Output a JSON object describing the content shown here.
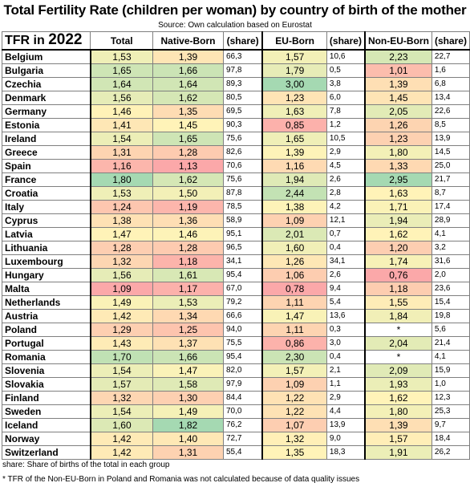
{
  "title": "Total Fertility Rate (children per woman) by country of birth of the mother",
  "source": "Source: Own calculation based on Eurostat",
  "header": {
    "tfr_label": "TFR in ",
    "year": "2022",
    "total": "Total",
    "native_born": "Native-Born",
    "share": "(share)",
    "eu_born": "EU-Born",
    "non_eu_born": "Non-EU-Born"
  },
  "rows": [
    {
      "country": "Belgium",
      "total": "1,53",
      "native": "1,39",
      "native_share": "66,3",
      "eu": "1,57",
      "eu_share": "10,6",
      "noneu": "2,23",
      "noneu_share": "22,7"
    },
    {
      "country": "Bulgaria",
      "total": "1,65",
      "native": "1,66",
      "native_share": "97,8",
      "eu": "1,79",
      "eu_share": "0,5",
      "noneu": "1,01",
      "noneu_share": "1,6"
    },
    {
      "country": "Czechia",
      "total": "1,64",
      "native": "1,64",
      "native_share": "89,3",
      "eu": "3,00",
      "eu_share": "3,8",
      "noneu": "1,39",
      "noneu_share": "6,8"
    },
    {
      "country": "Denmark",
      "total": "1,56",
      "native": "1,62",
      "native_share": "80,5",
      "eu": "1,23",
      "eu_share": "6,0",
      "noneu": "1,45",
      "noneu_share": "13,4"
    },
    {
      "country": "Germany",
      "total": "1,46",
      "native": "1,35",
      "native_share": "69,5",
      "eu": "1,63",
      "eu_share": "7,8",
      "noneu": "2,05",
      "noneu_share": "22,6"
    },
    {
      "country": "Estonia",
      "total": "1,41",
      "native": "1,45",
      "native_share": "90,3",
      "eu": "0,85",
      "eu_share": "1,2",
      "noneu": "1,26",
      "noneu_share": "8,5"
    },
    {
      "country": "Ireland",
      "total": "1,54",
      "native": "1,65",
      "native_share": "75,6",
      "eu": "1,65",
      "eu_share": "10,5",
      "noneu": "1,23",
      "noneu_share": "13,9"
    },
    {
      "country": "Greece",
      "total": "1,31",
      "native": "1,28",
      "native_share": "82,6",
      "eu": "1,39",
      "eu_share": "2,9",
      "noneu": "1,80",
      "noneu_share": "14,5"
    },
    {
      "country": "Spain",
      "total": "1,16",
      "native": "1,13",
      "native_share": "70,6",
      "eu": "1,16",
      "eu_share": "4,5",
      "noneu": "1,33",
      "noneu_share": "25,0"
    },
    {
      "country": "France",
      "total": "1,80",
      "native": "1,62",
      "native_share": "75,6",
      "eu": "1,94",
      "eu_share": "2,6",
      "noneu": "2,95",
      "noneu_share": "21,7"
    },
    {
      "country": "Croatia",
      "total": "1,53",
      "native": "1,50",
      "native_share": "87,8",
      "eu": "2,44",
      "eu_share": "2,8",
      "noneu": "1,63",
      "noneu_share": "8,7"
    },
    {
      "country": "Italy",
      "total": "1,24",
      "native": "1,19",
      "native_share": "78,5",
      "eu": "1,38",
      "eu_share": "4,2",
      "noneu": "1,71",
      "noneu_share": "17,4"
    },
    {
      "country": "Cyprus",
      "total": "1,38",
      "native": "1,36",
      "native_share": "58,9",
      "eu": "1,09",
      "eu_share": "12,1",
      "noneu": "1,94",
      "noneu_share": "28,9"
    },
    {
      "country": "Latvia",
      "total": "1,47",
      "native": "1,46",
      "native_share": "95,1",
      "eu": "2,01",
      "eu_share": "0,7",
      "noneu": "1,62",
      "noneu_share": "4,1"
    },
    {
      "country": "Lithuania",
      "total": "1,28",
      "native": "1,28",
      "native_share": "96,5",
      "eu": "1,60",
      "eu_share": "0,4",
      "noneu": "1,20",
      "noneu_share": "3,2"
    },
    {
      "country": "Luxembourg",
      "total": "1,32",
      "native": "1,18",
      "native_share": "34,1",
      "eu": "1,26",
      "eu_share": "34,1",
      "noneu": "1,74",
      "noneu_share": "31,6"
    },
    {
      "country": "Hungary",
      "total": "1,56",
      "native": "1,61",
      "native_share": "95,4",
      "eu": "1,06",
      "eu_share": "2,6",
      "noneu": "0,76",
      "noneu_share": "2,0"
    },
    {
      "country": "Malta",
      "total": "1,09",
      "native": "1,17",
      "native_share": "67,0",
      "eu": "0,78",
      "eu_share": "9,4",
      "noneu": "1,18",
      "noneu_share": "23,6"
    },
    {
      "country": "Netherlands",
      "total": "1,49",
      "native": "1,53",
      "native_share": "79,2",
      "eu": "1,11",
      "eu_share": "5,4",
      "noneu": "1,55",
      "noneu_share": "15,4"
    },
    {
      "country": "Austria",
      "total": "1,42",
      "native": "1,34",
      "native_share": "66,6",
      "eu": "1,47",
      "eu_share": "13,6",
      "noneu": "1,84",
      "noneu_share": "19,8"
    },
    {
      "country": "Poland",
      "total": "1,29",
      "native": "1,25",
      "native_share": "94,0",
      "eu": "1,11",
      "eu_share": "0,3",
      "noneu": "*",
      "noneu_share": "5,6"
    },
    {
      "country": "Portugal",
      "total": "1,43",
      "native": "1,37",
      "native_share": "75,5",
      "eu": "0,86",
      "eu_share": "3,0",
      "noneu": "2,04",
      "noneu_share": "21,4"
    },
    {
      "country": "Romania",
      "total": "1,70",
      "native": "1,66",
      "native_share": "95,4",
      "eu": "2,30",
      "eu_share": "0,4",
      "noneu": "*",
      "noneu_share": "4,1"
    },
    {
      "country": "Slovenia",
      "total": "1,54",
      "native": "1,47",
      "native_share": "82,0",
      "eu": "1,57",
      "eu_share": "2,1",
      "noneu": "2,09",
      "noneu_share": "15,9"
    },
    {
      "country": "Slovakia",
      "total": "1,57",
      "native": "1,58",
      "native_share": "97,9",
      "eu": "1,09",
      "eu_share": "1,1",
      "noneu": "1,93",
      "noneu_share": "1,0"
    },
    {
      "country": "Finland",
      "total": "1,32",
      "native": "1,30",
      "native_share": "84,4",
      "eu": "1,22",
      "eu_share": "2,9",
      "noneu": "1,62",
      "noneu_share": "12,3"
    },
    {
      "country": "Sweden",
      "total": "1,54",
      "native": "1,49",
      "native_share": "70,0",
      "eu": "1,22",
      "eu_share": "4,4",
      "noneu": "1,80",
      "noneu_share": "25,3"
    },
    {
      "country": "Iceland",
      "total": "1,60",
      "native": "1,82",
      "native_share": "76,2",
      "eu": "1,07",
      "eu_share": "13,9",
      "noneu": "1,39",
      "noneu_share": "9,7"
    },
    {
      "country": "Norway",
      "total": "1,42",
      "native": "1,40",
      "native_share": "72,7",
      "eu": "1,32",
      "eu_share": "9,0",
      "noneu": "1,57",
      "noneu_share": "18,4"
    },
    {
      "country": "Switzerland",
      "total": "1,42",
      "native": "1,31",
      "native_share": "55,4",
      "eu": "1,35",
      "eu_share": "18,3",
      "noneu": "1,91",
      "noneu_share": "26,2"
    }
  ],
  "footnotes": {
    "share": "share: Share of births of the total in each group",
    "asterisk": "* TFR of the Non-EU-Born in Poland and Romania was not calculated because of data quality issues"
  },
  "colors": {
    "low": "#f8696b",
    "mid": "#ffeb84",
    "high": "#63be7b",
    "border": "#7f7f7f"
  }
}
